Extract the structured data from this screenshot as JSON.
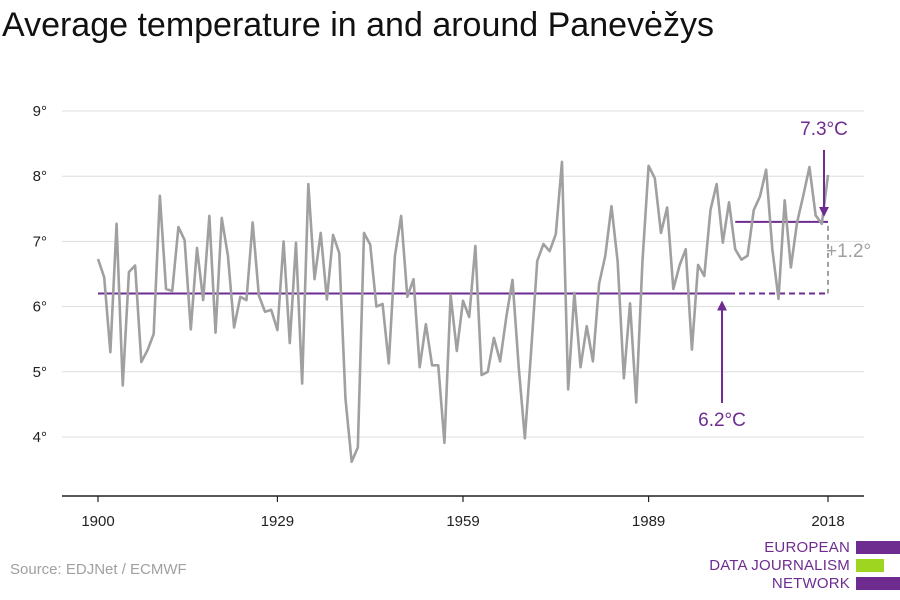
{
  "chart_data": {
    "type": "line",
    "title": "Average temperature in and around Panevėžys",
    "x_ticks": [
      1900,
      1929,
      1959,
      1989,
      2018
    ],
    "y_ticks": [
      {
        "value": 4,
        "label": "4°"
      },
      {
        "value": 5,
        "label": "5°"
      },
      {
        "value": 6,
        "label": "6°"
      },
      {
        "value": 7,
        "label": "7°"
      },
      {
        "value": 8,
        "label": "8°"
      },
      {
        "value": 9,
        "label": "9°"
      }
    ],
    "xlim": [
      1894,
      2024
    ],
    "ylim": [
      3.1,
      9.4
    ],
    "grid": true,
    "x_start": 1900,
    "values": [
      6.73,
      6.45,
      5.3,
      7.27,
      4.79,
      6.53,
      6.63,
      5.15,
      5.33,
      5.58,
      7.7,
      6.27,
      6.24,
      7.22,
      7.02,
      5.65,
      6.9,
      6.1,
      7.39,
      5.6,
      7.36,
      6.78,
      5.68,
      6.15,
      6.1,
      7.29,
      6.17,
      5.92,
      5.95,
      5.64,
      7.0,
      5.44,
      6.98,
      4.82,
      7.88,
      6.42,
      7.13,
      6.11,
      7.1,
      6.82,
      4.59,
      3.62,
      3.84,
      7.13,
      6.95,
      6.0,
      6.04,
      5.13,
      6.78,
      7.39,
      6.15,
      6.42,
      5.07,
      5.73,
      5.1,
      5.1,
      3.91,
      6.18,
      5.32,
      6.09,
      5.84,
      6.93,
      4.95,
      5.0,
      5.52,
      5.16,
      5.84,
      6.41,
      5.08,
      3.98,
      5.3,
      6.7,
      6.96,
      6.85,
      7.11,
      8.22,
      4.73,
      6.21,
      5.07,
      5.7,
      5.16,
      6.35,
      6.78,
      7.54,
      6.69,
      4.9,
      6.05,
      4.53,
      6.68,
      8.16,
      7.97,
      7.13,
      7.52,
      6.27,
      6.63,
      6.88,
      5.34,
      6.64,
      6.47,
      7.48,
      7.88,
      6.98,
      7.6,
      6.88,
      6.72,
      6.78,
      7.48,
      7.69,
      8.1,
      6.88,
      6.12,
      7.63,
      6.6,
      7.29,
      7.7,
      8.14,
      7.4,
      7.27,
      8.02
    ],
    "baseline": {
      "value": 6.2,
      "label": "6.2°C",
      "solid_from": 1900,
      "solid_to": 2002,
      "dashed_to": 2018
    },
    "recent": {
      "value": 7.3,
      "label": "7.3°C",
      "from": 2003,
      "to": 2018
    },
    "difference_label": "+1.2°"
  },
  "source": "Source: EDJNet / ECMWF",
  "logo": {
    "lines": [
      "EUROPEAN",
      "DATA JOURNALISM",
      "NETWORK"
    ]
  },
  "colors": {
    "line": "#a0a0a0",
    "accent": "#6e2c91",
    "grid": "#dddddd",
    "axis": "#222222",
    "logo_text": "#6e2c91",
    "logo_green": "#9ed520"
  }
}
